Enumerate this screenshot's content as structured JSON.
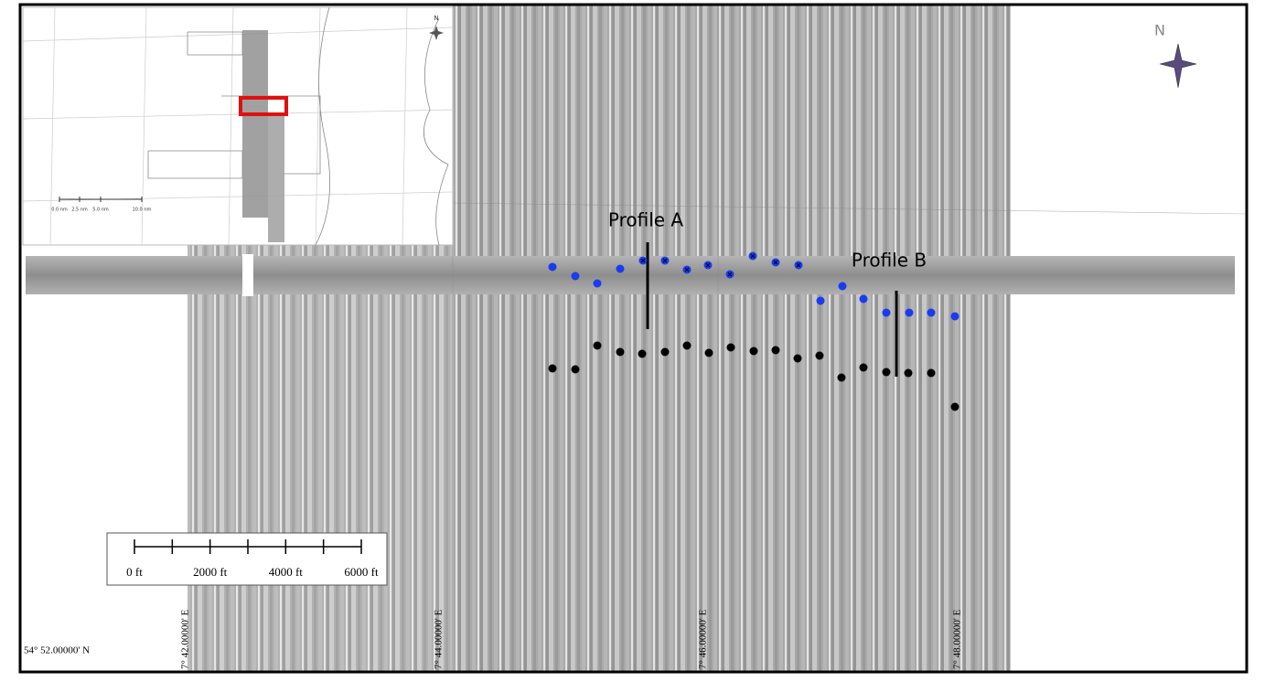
{
  "map": {
    "north_label": "N",
    "profiles": [
      "Profile A",
      "Profile B"
    ],
    "scale_bar": {
      "labels": [
        "0 ft",
        "2000 ft",
        "4000 ft",
        "6000 ft"
      ]
    },
    "coordinates": {
      "longitude": [
        "7° 42.00000' E",
        "7° 44.00000' E",
        "7° 46.00000' E",
        "7° 48.00000' E"
      ],
      "latitude": "54° 52.00000' N"
    },
    "inset": {
      "north_label": "N",
      "scale_labels": [
        "0.0 nm",
        "2.5 nm",
        "5.0 nm",
        "10.0 nm"
      ]
    }
  }
}
